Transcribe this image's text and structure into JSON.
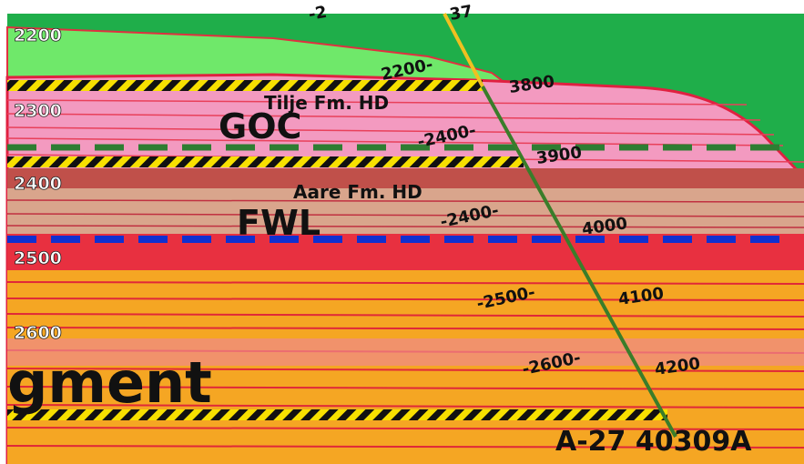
{
  "depth_labels": [
    "2200",
    "2300",
    "2400",
    "2500",
    "2600"
  ],
  "top_marks": [
    "-2",
    "37"
  ],
  "formations": [
    "Tilje Fm. HD",
    "Aare Fm. HD"
  ],
  "contacts": [
    "GOC",
    "FWL"
  ],
  "segment_label": "gment",
  "well_tvd_labels": [
    "2200-",
    "-2400-",
    "-2400-",
    "-2500-",
    "-2600-"
  ],
  "well_md_labels": [
    "3800",
    "3900",
    "4000",
    "4100",
    "4200"
  ],
  "well_name": "A-27 40309A"
}
